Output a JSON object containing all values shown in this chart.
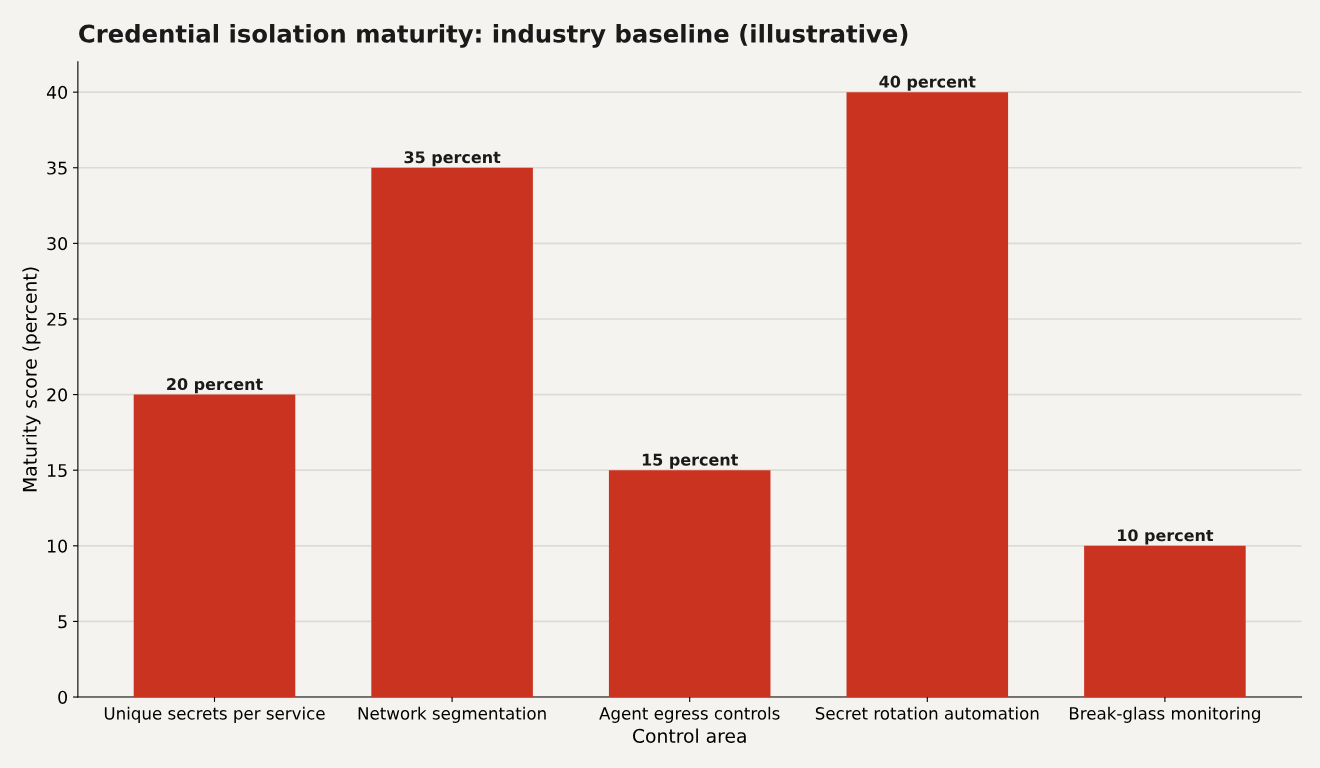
{
  "chart_data": {
    "type": "bar",
    "title": "Credential isolation maturity: industry baseline (illustrative)",
    "xlabel": "Control area",
    "ylabel": "Maturity score (percent)",
    "categories": [
      "Unique secrets per service",
      "Network segmentation",
      "Agent egress controls",
      "Secret rotation automation",
      "Break-glass monitoring"
    ],
    "values": [
      20,
      35,
      15,
      40,
      10
    ],
    "value_labels": [
      "20 percent",
      "35 percent",
      "15 percent",
      "40 percent",
      "10 percent"
    ],
    "color": "#c9331f",
    "ylim": [
      0,
      42
    ],
    "yticks": [
      0,
      5,
      10,
      15,
      20,
      25,
      30,
      35,
      40
    ],
    "grid": "y"
  }
}
